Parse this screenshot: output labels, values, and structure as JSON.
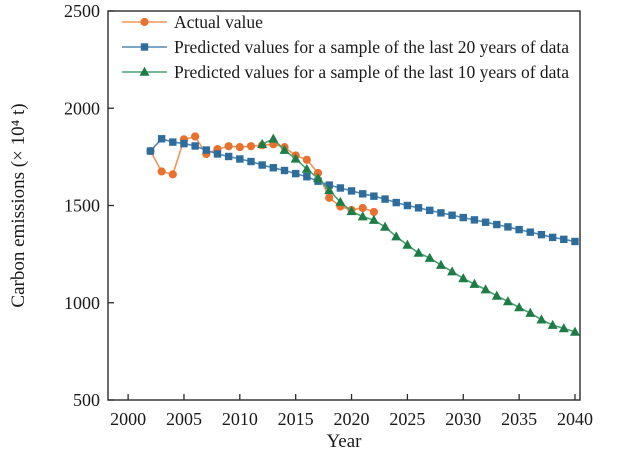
{
  "figure": {
    "background": "#ffffff",
    "text_color": "#1a1a1a",
    "frame_color": "#2b2b2b"
  },
  "chart_data": {
    "type": "line",
    "title": "",
    "xlabel": "Year",
    "ylabel": "Carbon emissions (× 10⁴ t)",
    "xlim": [
      1998.2,
      2040.45
    ],
    "ylim": [
      500,
      2500
    ],
    "x_ticks": [
      2000,
      2005,
      2010,
      2015,
      2020,
      2025,
      2030,
      2035,
      2040
    ],
    "y_ticks": [
      500,
      1000,
      1500,
      2000,
      2500
    ],
    "grid": false,
    "legend_position": "top-left",
    "series": [
      {
        "name": "Actual value",
        "marker": "circle",
        "marker_color": "#e8712f",
        "line_color": "#ef9559",
        "x": [
          2002,
          2003,
          2004,
          2005,
          2006,
          2007,
          2008,
          2009,
          2010,
          2011,
          2012,
          2013,
          2014,
          2015,
          2016,
          2017,
          2018,
          2019,
          2020,
          2021,
          2022
        ],
        "values": [
          1780,
          1675,
          1660,
          1840,
          1855,
          1765,
          1790,
          1805,
          1800,
          1805,
          1810,
          1815,
          1800,
          1757,
          1735,
          1667,
          1540,
          1495,
          1477,
          1487,
          1467
        ]
      },
      {
        "name": "Predicted values for a sample of the last 20 years of data",
        "marker": "square",
        "marker_color": "#2d6c9b",
        "line_color": "#5187b3",
        "x": [
          2002,
          2003,
          2004,
          2005,
          2006,
          2007,
          2008,
          2009,
          2010,
          2011,
          2012,
          2013,
          2014,
          2015,
          2016,
          2017,
          2018,
          2019,
          2020,
          2021,
          2022,
          2023,
          2024,
          2025,
          2026,
          2027,
          2028,
          2029,
          2030,
          2031,
          2032,
          2033,
          2034,
          2035,
          2036,
          2037,
          2038,
          2039,
          2040
        ],
        "values": [
          1780,
          1843,
          1826,
          1818,
          1806,
          1785,
          1765,
          1752,
          1739,
          1726,
          1708,
          1694,
          1680,
          1664,
          1648,
          1625,
          1605,
          1590,
          1575,
          1560,
          1548,
          1533,
          1515,
          1500,
          1488,
          1475,
          1462,
          1450,
          1438,
          1426,
          1414,
          1402,
          1390,
          1376,
          1363,
          1350,
          1336,
          1326,
          1315
        ]
      },
      {
        "name": "Predicted values for a sample of the last 10 years of data",
        "marker": "triangle",
        "marker_color": "#1e7c47",
        "line_color": "#48a071",
        "x": [
          2012,
          2013,
          2014,
          2015,
          2016,
          2017,
          2018,
          2019,
          2020,
          2021,
          2022,
          2023,
          2024,
          2025,
          2026,
          2027,
          2028,
          2029,
          2030,
          2031,
          2032,
          2033,
          2034,
          2035,
          2036,
          2037,
          2038,
          2039,
          2040
        ],
        "values": [
          1815,
          1843,
          1785,
          1740,
          1687,
          1640,
          1578,
          1518,
          1470,
          1443,
          1425,
          1390,
          1340,
          1297,
          1256,
          1230,
          1194,
          1160,
          1125,
          1096,
          1068,
          1035,
          1007,
          976,
          947,
          913,
          885,
          868,
          850
        ]
      }
    ]
  }
}
